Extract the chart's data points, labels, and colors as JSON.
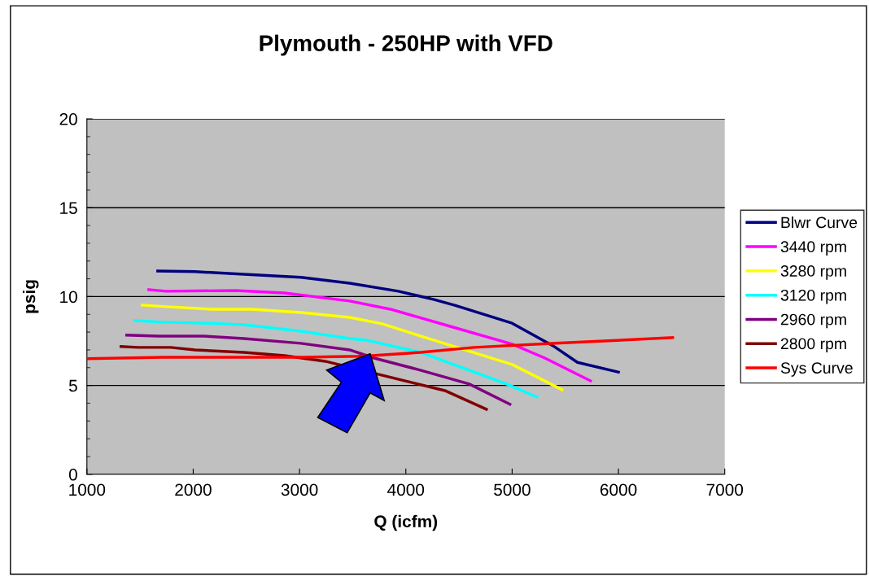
{
  "chart_data": {
    "type": "line",
    "title": "Plymouth - 250HP with VFD",
    "xlabel": "Q (icfm)",
    "ylabel": "psig",
    "xlim": [
      1000,
      7000
    ],
    "xticks": [
      1000,
      2000,
      3000,
      4000,
      5000,
      6000,
      7000
    ],
    "ylim": [
      0,
      20
    ],
    "yticks": [
      0,
      5,
      10,
      15,
      20
    ],
    "grid": "y",
    "legend": "right",
    "marker": "none",
    "line_style": "solid",
    "series": [
      {
        "name": "Blwr Curve",
        "color": "#000080",
        "x": [
          1666,
          2018,
          2477,
          3013,
          3472,
          3931,
          4260,
          4467,
          5000,
          5385,
          5614,
          6000
        ],
        "values": [
          11.44,
          11.4,
          11.26,
          11.08,
          10.75,
          10.3,
          9.84,
          9.5,
          8.5,
          7.23,
          6.3,
          5.75
        ]
      },
      {
        "name": "3440 rpm",
        "color": "#ff00ff",
        "x": [
          1582,
          1750,
          2400,
          2860,
          3472,
          3855,
          4390,
          5000,
          5308,
          5737
        ],
        "values": [
          10.39,
          10.3,
          10.34,
          10.2,
          9.75,
          9.29,
          8.37,
          7.32,
          6.54,
          5.26
        ]
      },
      {
        "name": "3280 rpm",
        "color": "#ffff00",
        "x": [
          1520,
          1750,
          2170,
          2553,
          3013,
          3472,
          3778,
          4137,
          5000,
          5469
        ],
        "values": [
          9.52,
          9.43,
          9.29,
          9.29,
          9.1,
          8.83,
          8.47,
          7.78,
          6.18,
          4.76
        ]
      },
      {
        "name": "3120 rpm",
        "color": "#00ffff",
        "x": [
          1452,
          1712,
          2094,
          2477,
          3013,
          3472,
          3625,
          4137,
          4949,
          5232
        ],
        "values": [
          8.65,
          8.56,
          8.51,
          8.42,
          8.05,
          7.64,
          7.55,
          6.86,
          5.08,
          4.35
        ]
      },
      {
        "name": "2960 rpm",
        "color": "#800080",
        "x": [
          1375,
          1673,
          2094,
          2477,
          3013,
          3472,
          3702,
          4137,
          4597,
          4979
        ],
        "values": [
          7.83,
          7.78,
          7.78,
          7.64,
          7.37,
          7.0,
          6.54,
          5.86,
          5.08,
          3.94
        ]
      },
      {
        "name": "2800 rpm",
        "color": "#800000",
        "x": [
          1321,
          1482,
          1788,
          2018,
          2477,
          2860,
          3242,
          4367,
          4758
        ],
        "values": [
          7.19,
          7.14,
          7.14,
          7.0,
          6.86,
          6.68,
          6.36,
          4.71,
          3.66
        ]
      },
      {
        "name": "Sys Curve",
        "color": "#ff0000",
        "x": [
          1000,
          1712,
          2477,
          3013,
          3548,
          3678,
          4137,
          4642,
          5408,
          6510
        ],
        "values": [
          6.5,
          6.59,
          6.59,
          6.59,
          6.64,
          6.68,
          6.86,
          7.14,
          7.37,
          7.69
        ]
      }
    ]
  }
}
